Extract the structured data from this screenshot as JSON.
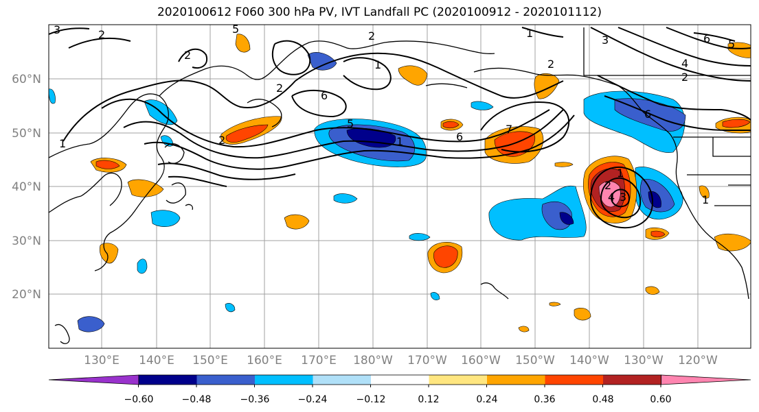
{
  "title": "2020100612 F060 300 hPa PV, IVT Landfall PC (2020100912 - 2020101112)",
  "map": {
    "lat_labels": [
      "60°N",
      "50°N",
      "40°N",
      "30°N",
      "20°N"
    ],
    "lon_labels": [
      "130°E",
      "140°E",
      "150°E",
      "160°E",
      "170°E",
      "180°W",
      "170°W",
      "160°W",
      "150°W",
      "140°W",
      "130°W",
      "120°W"
    ],
    "contour_labels": [
      "1",
      "2",
      "3",
      "5",
      "6",
      "6",
      "5",
      "1",
      "1",
      "2",
      "1",
      "4",
      "6",
      "7",
      "2",
      "1",
      "2",
      "3",
      "4",
      "2",
      "5",
      "6",
      "2",
      "1",
      "2",
      "3",
      "2"
    ]
  },
  "colorbar": {
    "tick_labels": [
      "−0.60",
      "−0.48",
      "−0.36",
      "−0.24",
      "−0.12",
      "0.12",
      "0.24",
      "0.36",
      "0.48",
      "0.60"
    ],
    "colors": [
      "#9932cc",
      "#00008b",
      "#3a5fcd",
      "#00bfff",
      "#b0e0f8",
      "#ffffff",
      "#ffe680",
      "#ffa500",
      "#ff4500",
      "#b22222",
      "#ff85b0"
    ]
  }
}
